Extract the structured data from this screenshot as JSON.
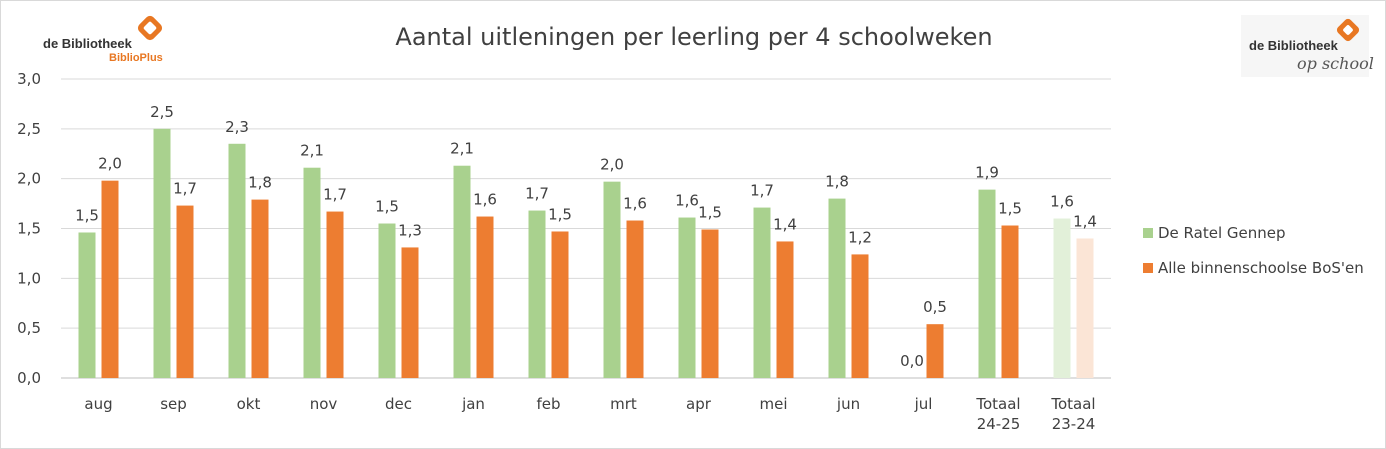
{
  "logo_left": {
    "name": "de Bibliotheek",
    "sub": "BiblioPlus"
  },
  "logo_right": {
    "name": "de Bibliotheek",
    "sub": "op school"
  },
  "chart_data": {
    "type": "bar",
    "title": "Aantal uitleningen per leerling per 4 schoolweken",
    "categories": [
      [
        "aug"
      ],
      [
        "sep"
      ],
      [
        "okt"
      ],
      [
        "nov"
      ],
      [
        "dec"
      ],
      [
        "jan"
      ],
      [
        "feb"
      ],
      [
        "mrt"
      ],
      [
        "apr"
      ],
      [
        "mei"
      ],
      [
        "jun"
      ],
      [
        "jul"
      ],
      [
        "Totaal",
        "24-25"
      ],
      [
        "Totaal",
        "23-24"
      ]
    ],
    "series": [
      {
        "name": "De Ratel Gennep",
        "color": "#a9d18e",
        "values": [
          1.46,
          2.5,
          2.35,
          2.11,
          1.55,
          2.13,
          1.68,
          1.97,
          1.61,
          1.71,
          1.8,
          0.0,
          1.89,
          1.6
        ],
        "labels": [
          "1,5",
          "2,5",
          "2,3",
          "2,1",
          "1,5",
          "2,1",
          "1,7",
          "2,0",
          "1,6",
          "1,7",
          "1,8",
          "0,0",
          "1,9",
          "1,6"
        ]
      },
      {
        "name": "Alle binnenschoolse BoS'en",
        "color": "#ed7d31",
        "values": [
          1.98,
          1.73,
          1.79,
          1.67,
          1.31,
          1.62,
          1.47,
          1.58,
          1.49,
          1.37,
          1.24,
          0.54,
          1.53,
          1.4
        ],
        "labels": [
          "2,0",
          "1,7",
          "1,8",
          "1,7",
          "1,3",
          "1,6",
          "1,5",
          "1,6",
          "1,5",
          "1,4",
          "1,2",
          "0,5",
          "1,5",
          "1,4"
        ]
      }
    ],
    "faded_categories": [
      13
    ],
    "faded_colors": [
      "#e2f0d9",
      "#fbe5d6"
    ],
    "ylim": [
      0,
      3.0
    ],
    "yticks": [
      0,
      0.5,
      1.0,
      1.5,
      2.0,
      2.5,
      3.0
    ],
    "ytick_labels": [
      "0,0",
      "0,5",
      "1,0",
      "1,5",
      "2,0",
      "2,5",
      "3,0"
    ],
    "grid": true,
    "legend_position": "right"
  }
}
